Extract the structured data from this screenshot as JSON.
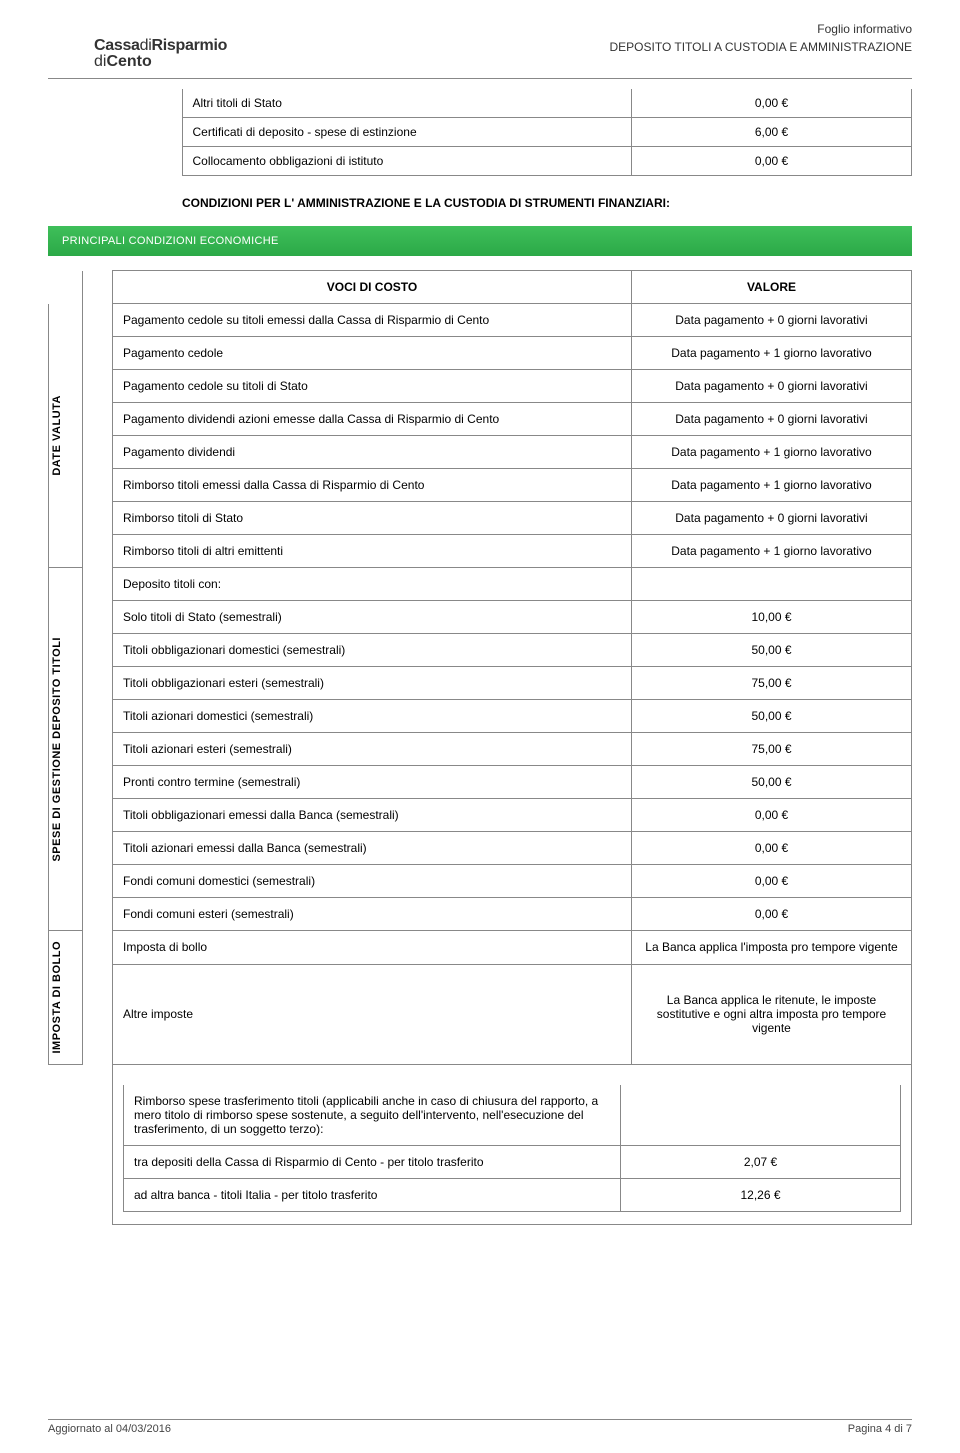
{
  "header": {
    "brand_pre": "Cassa",
    "brand_mid": "di",
    "brand_post": "Risparmio",
    "brand_sub_pre": "di",
    "brand_sub_post": "Cento",
    "line1": "Foglio informativo",
    "line2": "DEPOSITO TITOLI A CUSTODIA E AMMINISTRAZIONE",
    "logo_color_a": "#2ba947",
    "logo_color_b": "#0b6f3d"
  },
  "top_rows": [
    {
      "label": "Altri titoli di Stato",
      "value": "0,00 €"
    },
    {
      "label": "Certificati di deposito - spese di estinzione",
      "value": "6,00 €"
    },
    {
      "label": "Collocamento obbligazioni di istituto",
      "value": "0,00 €"
    }
  ],
  "condizioni_heading": "CONDIZIONI PER L' AMMINISTRAZIONE E LA CUSTODIA DI STRUMENTI FINANZIARI:",
  "green_band": "PRINCIPALI CONDIZIONI ECONOMICHE",
  "headers": {
    "voci": "VOCI DI COSTO",
    "valore": "VALORE"
  },
  "sections": [
    {
      "title": "DATE VALUTA",
      "rows": [
        {
          "label": "Pagamento cedole su titoli emessi dalla Cassa di Risparmio di Cento",
          "value": "Data pagamento + 0 giorni lavorativi"
        },
        {
          "label": "Pagamento cedole",
          "value": "Data pagamento + 1 giorno lavorativo"
        },
        {
          "label": "Pagamento cedole su titoli di Stato",
          "value": "Data pagamento + 0 giorni lavorativi"
        },
        {
          "label": "Pagamento dividendi azioni emesse dalla Cassa di Risparmio di Cento",
          "value": "Data pagamento + 0 giorni lavorativi"
        },
        {
          "label": "Pagamento dividendi",
          "value": "Data pagamento + 1 giorno lavorativo"
        },
        {
          "label": "Rimborso titoli emessi dalla Cassa di Risparmio di Cento",
          "value": "Data pagamento + 1 giorno lavorativo"
        },
        {
          "label": "Rimborso titoli di Stato",
          "value": "Data pagamento + 0 giorni lavorativi"
        },
        {
          "label": "Rimborso titoli di altri emittenti",
          "value": "Data pagamento + 1 giorno lavorativo"
        }
      ]
    },
    {
      "title": "SPESE DI GESTIONE DEPOSITO TITOLI",
      "rows": [
        {
          "label": "Deposito titoli con:",
          "value": ""
        },
        {
          "label": "Solo titoli di Stato (semestrali)",
          "value": "10,00 €"
        },
        {
          "label": "Titoli obbligazionari domestici (semestrali)",
          "value": "50,00 €"
        },
        {
          "label": "Titoli obbligazionari esteri (semestrali)",
          "value": "75,00 €"
        },
        {
          "label": "Titoli azionari domestici (semestrali)",
          "value": "50,00 €"
        },
        {
          "label": "Titoli azionari esteri (semestrali)",
          "value": "75,00 €"
        },
        {
          "label": "Pronti contro termine (semestrali)",
          "value": "50,00 €"
        },
        {
          "label": "Titoli obbligazionari emessi dalla Banca (semestrali)",
          "value": "0,00 €"
        },
        {
          "label": "Titoli azionari emessi dalla Banca (semestrali)",
          "value": "0,00 €"
        },
        {
          "label": "Fondi comuni domestici (semestrali)",
          "value": "0,00 €"
        },
        {
          "label": "Fondi comuni esteri (semestrali)",
          "value": "0,00 €"
        }
      ]
    },
    {
      "title": "IMPOSTA DI BOLLO",
      "rows": [
        {
          "label": "Imposta di bollo",
          "value": "La Banca applica l'imposta pro tempore vigente"
        },
        {
          "label": "Altre imposte",
          "value": "La Banca applica le ritenute, le imposte sostitutive e ogni altra imposta pro tempore vigente",
          "tall": true
        }
      ]
    }
  ],
  "note": {
    "text": "Rimborso spese trasferimento titoli (applicabili anche in caso di chiusura del rapporto, a mero titolo di rimborso spese sostenute, a seguito dell'intervento, nell'esecuzione del trasferimento, di un soggetto terzo):",
    "rows": [
      {
        "label": "tra depositi della Cassa di Risparmio di Cento - per titolo trasferito",
        "value": "2,07 €"
      },
      {
        "label": "ad altra banca - titoli Italia - per titolo trasferito",
        "value": "12,26 €"
      }
    ]
  },
  "footer": {
    "left": "Aggiornato al 04/03/2016",
    "right": "Pagina 4 di 7"
  }
}
